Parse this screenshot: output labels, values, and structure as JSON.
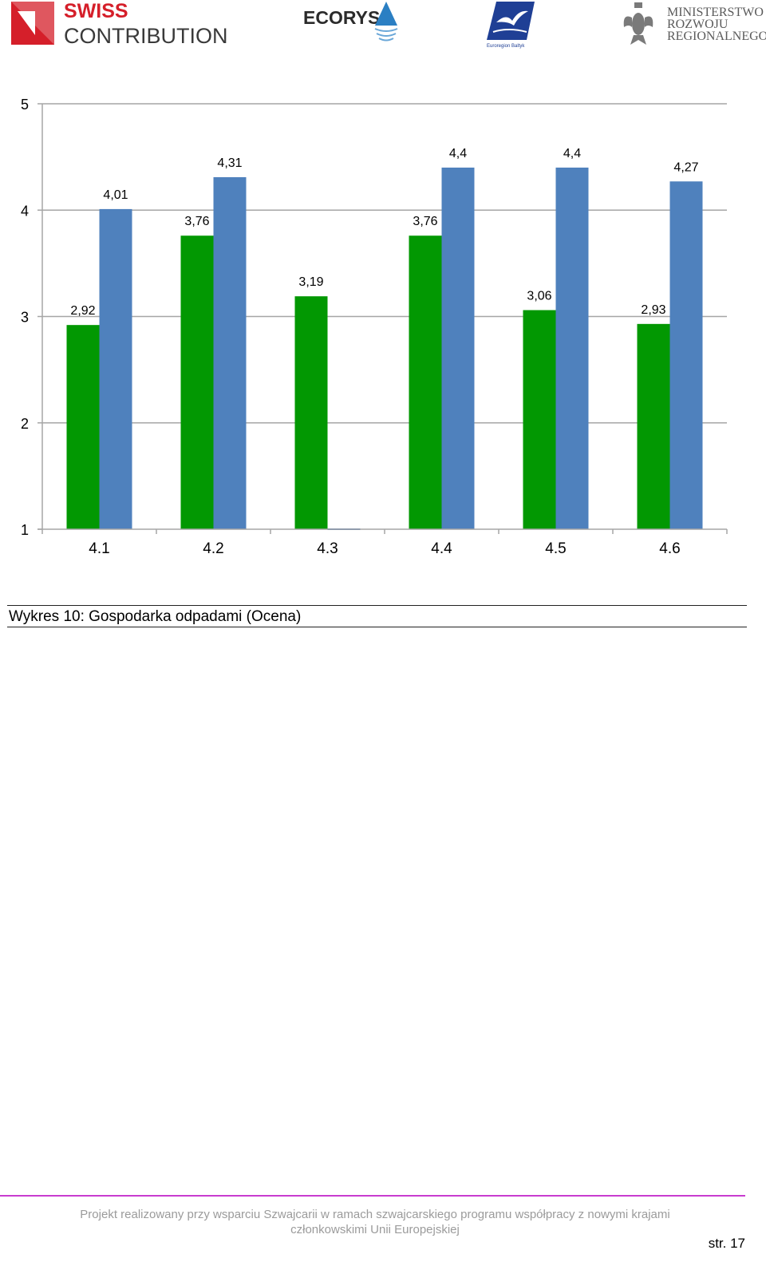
{
  "header": {
    "swiss_line1": "SWISS",
    "swiss_line2": "CONTRIBUTION",
    "ecorys": "ECORYS",
    "baltic": "Euroregion Baltyk",
    "ministry_line1": "MINISTERSTWO",
    "ministry_line2": "ROZWOJU",
    "ministry_line3": "REGIONALNEGO"
  },
  "chart_data": {
    "type": "bar",
    "categories": [
      "4.1",
      "4.2",
      "4.3",
      "4.4",
      "4.5",
      "4.6"
    ],
    "series": [
      {
        "values": [
          2.92,
          3.76,
          3.19,
          3.76,
          3.06,
          2.93
        ],
        "labels": [
          "2,92",
          "3,76",
          "3,19",
          "3,76",
          "3,06",
          "2,93"
        ],
        "color": "#029802"
      },
      {
        "values": [
          4.01,
          4.31,
          null,
          4.4,
          4.4,
          4.27
        ],
        "labels": [
          "4,01",
          "4,31",
          "",
          "4,4",
          "4,4",
          "4,27"
        ],
        "color": "#4f81bd"
      }
    ],
    "ylim": [
      1,
      5
    ],
    "yticks": [
      "1",
      "2",
      "3",
      "4",
      "5"
    ],
    "grid": true,
    "grid_color": "#a6a6a6",
    "title": "",
    "xlabel": "",
    "ylabel": ""
  },
  "caption": "Wykres 10: Gospodarka odpadami (Ocena)",
  "footer": {
    "line1": "Projekt realizowany przy wsparciu Szwajcarii w ramach szwajcarskiego programu współpracy z nowymi krajami",
    "line2": "członkowskimi Unii Europejskiej",
    "page": "str. 17"
  }
}
